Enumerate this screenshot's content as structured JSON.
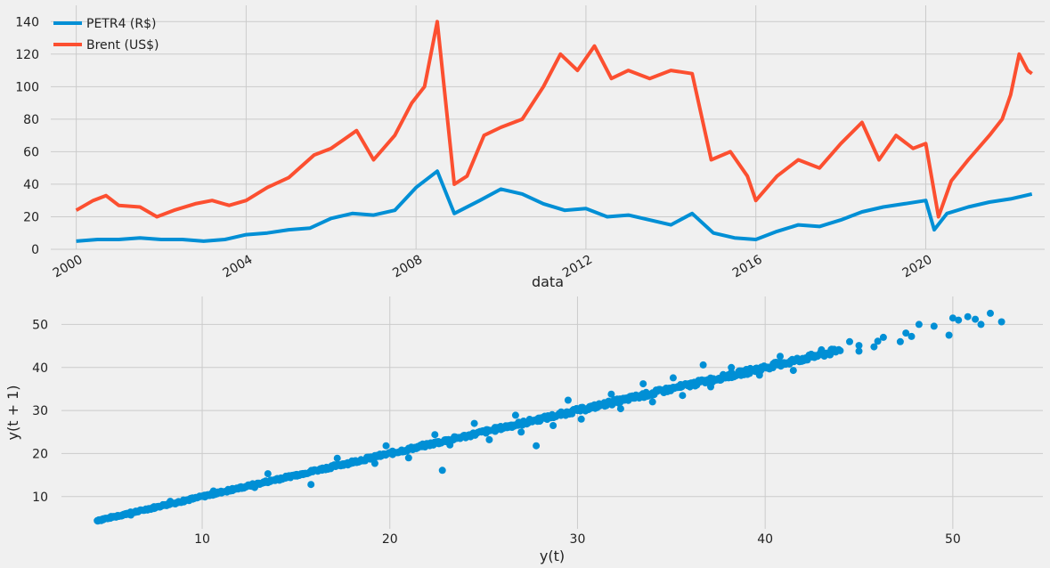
{
  "chart_data": [
    {
      "type": "line",
      "xlabel": "data",
      "ylabel": "",
      "ylim": [
        0,
        150
      ],
      "xlim": [
        1999.4,
        2022.8
      ],
      "yticks": [
        0,
        20,
        40,
        60,
        80,
        100,
        120,
        140
      ],
      "xticks": [
        2000,
        2004,
        2008,
        2012,
        2016,
        2020
      ],
      "xtick_labels": [
        "2000",
        "2004",
        "2008",
        "2012",
        "2016",
        "2020"
      ],
      "grid": true,
      "legend_placement": "top-left",
      "series": [
        {
          "name": "PETR4 (R$)",
          "color": "#008fd5",
          "x": [
            2000.0,
            2000.5,
            2001.0,
            2001.5,
            2002.0,
            2002.5,
            2003.0,
            2003.5,
            2004.0,
            2004.5,
            2005.0,
            2005.5,
            2006.0,
            2006.5,
            2007.0,
            2007.5,
            2008.0,
            2008.5,
            2008.9,
            2009.5,
            2010.0,
            2010.5,
            2011.0,
            2011.5,
            2012.0,
            2012.5,
            2013.0,
            2013.5,
            2014.0,
            2014.5,
            2015.0,
            2015.5,
            2016.0,
            2016.5,
            2017.0,
            2017.5,
            2018.0,
            2018.5,
            2019.0,
            2019.5,
            2020.0,
            2020.2,
            2020.5,
            2021.0,
            2021.5,
            2022.0,
            2022.5
          ],
          "values": [
            5,
            6,
            6,
            7,
            6,
            6,
            5,
            6,
            9,
            10,
            12,
            13,
            19,
            22,
            21,
            24,
            38,
            48,
            22,
            30,
            37,
            34,
            28,
            24,
            25,
            20,
            21,
            18,
            15,
            22,
            10,
            7,
            6,
            11,
            15,
            14,
            18,
            23,
            26,
            28,
            30,
            12,
            22,
            26,
            29,
            31,
            34
          ]
        },
        {
          "name": "Brent (US$)",
          "color": "#fc4f30",
          "x": [
            2000.0,
            2000.4,
            2000.7,
            2001.0,
            2001.5,
            2001.9,
            2002.3,
            2002.8,
            2003.2,
            2003.6,
            2004.0,
            2004.5,
            2005.0,
            2005.6,
            2006.0,
            2006.6,
            2007.0,
            2007.5,
            2007.9,
            2008.2,
            2008.5,
            2008.9,
            2009.2,
            2009.6,
            2010.0,
            2010.5,
            2011.0,
            2011.4,
            2011.8,
            2012.2,
            2012.6,
            2013.0,
            2013.5,
            2014.0,
            2014.5,
            2014.95,
            2015.4,
            2015.8,
            2016.0,
            2016.5,
            2017.0,
            2017.5,
            2018.0,
            2018.5,
            2018.9,
            2019.3,
            2019.7,
            2020.0,
            2020.3,
            2020.6,
            2021.0,
            2021.5,
            2021.8,
            2022.0,
            2022.2,
            2022.4,
            2022.5
          ],
          "values": [
            24,
            30,
            33,
            27,
            26,
            20,
            24,
            28,
            30,
            27,
            30,
            38,
            44,
            58,
            62,
            73,
            55,
            70,
            90,
            100,
            140,
            40,
            45,
            70,
            75,
            80,
            100,
            120,
            110,
            125,
            105,
            110,
            105,
            110,
            108,
            55,
            60,
            45,
            30,
            45,
            55,
            50,
            65,
            78,
            55,
            70,
            62,
            65,
            20,
            42,
            55,
            70,
            80,
            95,
            120,
            110,
            108
          ]
        }
      ]
    },
    {
      "type": "scatter",
      "xlabel": "y(t)",
      "ylabel": "y(t + 1)",
      "xlim": [
        2.5,
        54.8
      ],
      "ylim": [
        2.5,
        56.5
      ],
      "xticks": [
        10,
        20,
        30,
        40,
        50
      ],
      "yticks": [
        10,
        20,
        30,
        40,
        50
      ],
      "grid": true,
      "color": "#008fd5",
      "points": [
        [
          4.5,
          4.6
        ],
        [
          5.0,
          4.9
        ],
        [
          5.5,
          5.6
        ],
        [
          6.0,
          6.1
        ],
        [
          6.5,
          6.4
        ],
        [
          7.0,
          7.1
        ],
        [
          7.5,
          7.4
        ],
        [
          8.0,
          8.1
        ],
        [
          8.5,
          8.4
        ],
        [
          9.0,
          9.2
        ],
        [
          9.5,
          9.4
        ],
        [
          10.0,
          10.1
        ],
        [
          10.5,
          10.4
        ],
        [
          11.0,
          11.1
        ],
        [
          11.5,
          11.3
        ],
        [
          12.0,
          12.1
        ],
        [
          12.5,
          12.6
        ],
        [
          13.0,
          13.0
        ],
        [
          13.5,
          13.4
        ],
        [
          14.0,
          14.2
        ],
        [
          14.5,
          14.4
        ],
        [
          15.0,
          15.1
        ],
        [
          15.5,
          15.4
        ],
        [
          16.0,
          16.2
        ],
        [
          16.5,
          16.4
        ],
        [
          17.0,
          17.1
        ],
        [
          17.5,
          17.6
        ],
        [
          18.0,
          18.1
        ],
        [
          18.5,
          18.3
        ],
        [
          19.0,
          19.2
        ],
        [
          19.5,
          19.5
        ],
        [
          20.0,
          20.1
        ],
        [
          20.5,
          20.4
        ],
        [
          21.0,
          21.1
        ],
        [
          21.5,
          21.6
        ],
        [
          22.0,
          22.0
        ],
        [
          22.5,
          22.4
        ],
        [
          23.0,
          23.2
        ],
        [
          23.5,
          23.5
        ],
        [
          24.0,
          24.1
        ],
        [
          24.5,
          24.4
        ],
        [
          25.0,
          25.2
        ],
        [
          25.5,
          25.4
        ],
        [
          26.0,
          26.1
        ],
        [
          26.5,
          26.6
        ],
        [
          27.0,
          27.0
        ],
        [
          27.5,
          27.4
        ],
        [
          28.0,
          28.2
        ],
        [
          28.5,
          28.4
        ],
        [
          29.0,
          29.1
        ],
        [
          29.5,
          29.6
        ],
        [
          30.0,
          30.0
        ],
        [
          30.5,
          30.4
        ],
        [
          31.0,
          31.1
        ],
        [
          31.5,
          31.6
        ],
        [
          32.0,
          32.0
        ],
        [
          32.5,
          32.4
        ],
        [
          33.0,
          33.2
        ],
        [
          33.5,
          33.4
        ],
        [
          34.0,
          34.1
        ],
        [
          34.5,
          34.6
        ],
        [
          35.0,
          35.0
        ],
        [
          35.5,
          35.4
        ],
        [
          36.0,
          36.1
        ],
        [
          36.5,
          36.6
        ],
        [
          37.0,
          37.0
        ],
        [
          37.5,
          37.4
        ],
        [
          38.0,
          38.2
        ],
        [
          38.5,
          38.4
        ],
        [
          39.0,
          39.1
        ],
        [
          39.5,
          39.6
        ],
        [
          40.0,
          40.0
        ],
        [
          40.5,
          40.5
        ],
        [
          41.0,
          41.1
        ],
        [
          42.0,
          42.1
        ],
        [
          43.0,
          43.2
        ],
        [
          44.0,
          43.9
        ],
        [
          45.0,
          45.1
        ],
        [
          46.0,
          46.1
        ],
        [
          6.2,
          5.7
        ],
        [
          8.3,
          8.9
        ],
        [
          10.6,
          11.3
        ],
        [
          12.8,
          12.1
        ],
        [
          13.5,
          15.3
        ],
        [
          15.8,
          12.8
        ],
        [
          17.2,
          18.9
        ],
        [
          19.2,
          17.7
        ],
        [
          19.8,
          21.8
        ],
        [
          21.0,
          19.0
        ],
        [
          22.4,
          24.4
        ],
        [
          22.8,
          16.1
        ],
        [
          23.2,
          22.0
        ],
        [
          24.5,
          27.0
        ],
        [
          25.3,
          23.2
        ],
        [
          26.7,
          28.9
        ],
        [
          27.0,
          25.0
        ],
        [
          27.8,
          21.8
        ],
        [
          28.7,
          26.5
        ],
        [
          29.5,
          32.4
        ],
        [
          30.2,
          28.0
        ],
        [
          31.8,
          33.8
        ],
        [
          32.3,
          30.4
        ],
        [
          33.5,
          36.2
        ],
        [
          34.0,
          32.0
        ],
        [
          35.1,
          37.6
        ],
        [
          35.6,
          33.5
        ],
        [
          36.7,
          40.6
        ],
        [
          37.1,
          35.5
        ],
        [
          38.2,
          40.0
        ],
        [
          39.7,
          38.2
        ],
        [
          40.8,
          42.6
        ],
        [
          41.5,
          39.3
        ],
        [
          43.0,
          44.1
        ],
        [
          44.5,
          46.0
        ],
        [
          45.0,
          43.8
        ],
        [
          45.8,
          44.8
        ],
        [
          46.3,
          47.0
        ],
        [
          47.5,
          48.0
        ],
        [
          47.2,
          46.0
        ],
        [
          47.8,
          47.2
        ],
        [
          48.2,
          50.0
        ],
        [
          49.0,
          49.6
        ],
        [
          49.8,
          47.5
        ],
        [
          50.0,
          51.5
        ],
        [
          50.3,
          51.0
        ],
        [
          50.8,
          51.8
        ],
        [
          51.2,
          51.2
        ],
        [
          51.5,
          50.0
        ],
        [
          52.0,
          52.6
        ],
        [
          52.6,
          50.6
        ]
      ]
    }
  ]
}
